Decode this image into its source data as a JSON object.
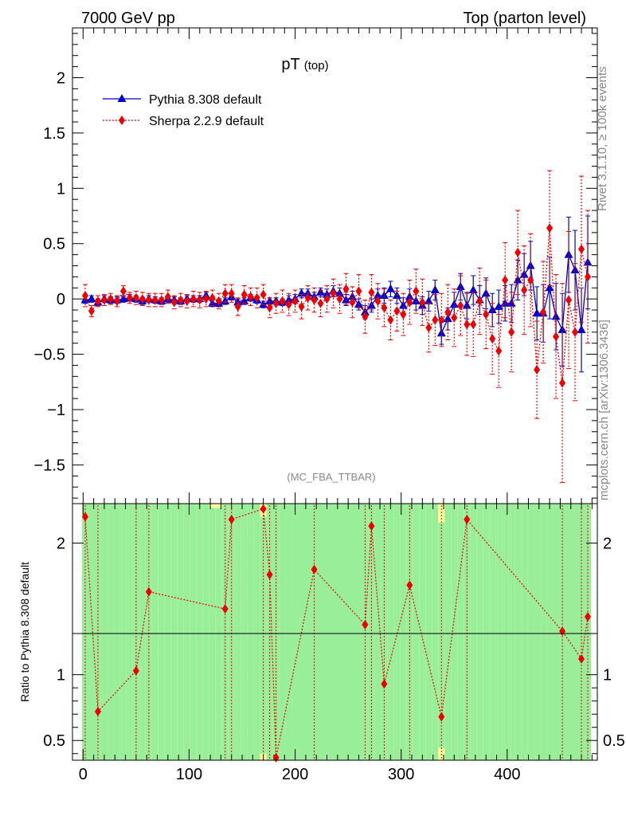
{
  "header": {
    "left": "7000 GeV pp",
    "right": "Top (parton level)"
  },
  "side_labels": {
    "rivet": "Rivet 3.1.10, ≥ 100k events",
    "mcplots": "mcplots.cern.ch [arXiv:1306.3436]"
  },
  "watermark": "(MC_FBA_TTBAR)",
  "colors": {
    "pythia": "#0000cc",
    "sherpa": "#ee0000",
    "band_green": "#99ee99",
    "band_yellow": "#ffff99",
    "axis": "#000000",
    "label_grey": "#888888"
  },
  "chart_data": [
    {
      "type": "line",
      "title": "pT",
      "title_sub": "(top)",
      "xlim": [
        -10,
        485
      ],
      "ylim": [
        -1.85,
        2.45
      ],
      "x_ticks": [
        0,
        100,
        200,
        300,
        400
      ],
      "y_ticks": [
        -1.5,
        -1,
        -0.5,
        0,
        0.5,
        1,
        1.5,
        2
      ],
      "y_tick_labels": [
        "−1.5",
        "−1",
        "−0.5",
        "0",
        "0.5",
        "1",
        "1.5",
        "2"
      ],
      "legend_position": "top-left",
      "series": [
        {
          "name": "Pythia 8.308 default",
          "marker": "triangle",
          "style": "solid",
          "x": [
            2,
            8,
            14,
            20,
            26,
            32,
            38,
            44,
            50,
            56,
            62,
            68,
            74,
            80,
            86,
            92,
            98,
            104,
            110,
            116,
            122,
            128,
            134,
            140,
            146,
            152,
            158,
            164,
            170,
            176,
            182,
            188,
            194,
            200,
            206,
            212,
            218,
            224,
            230,
            236,
            242,
            248,
            254,
            260,
            266,
            272,
            278,
            284,
            290,
            296,
            302,
            308,
            314,
            320,
            326,
            332,
            338,
            344,
            350,
            356,
            362,
            368,
            374,
            380,
            386,
            392,
            398,
            404,
            410,
            416,
            422,
            428,
            434,
            440,
            446,
            452,
            458,
            464,
            470,
            476
          ],
          "y": [
            -0.01,
            0.0,
            -0.03,
            0.0,
            -0.01,
            -0.01,
            0.0,
            0.01,
            0.0,
            -0.02,
            0.0,
            -0.01,
            -0.02,
            0.0,
            -0.01,
            -0.02,
            0.0,
            0.0,
            0.0,
            0.03,
            -0.04,
            -0.04,
            -0.02,
            0.02,
            -0.03,
            -0.02,
            0.01,
            -0.01,
            -0.05,
            -0.02,
            -0.02,
            -0.03,
            -0.01,
            0.0,
            0.05,
            0.05,
            0.02,
            0.06,
            0.04,
            0.07,
            0.05,
            -0.01,
            0.02,
            -0.05,
            -0.12,
            -0.06,
            0.03,
            0.03,
            0.09,
            0.03,
            -0.06,
            0.02,
            -0.02,
            -0.06,
            -0.02,
            0.08,
            -0.31,
            -0.18,
            -0.05,
            0.11,
            -0.06,
            0.08,
            -0.01,
            0.05,
            -0.1,
            -0.07,
            -0.04,
            -0.04,
            0.17,
            0.22,
            0.3,
            -0.13,
            -0.13,
            0.1,
            -0.16,
            -0.28,
            0.4,
            0.26,
            -0.28,
            0.33
          ],
          "err": [
            0.03,
            0.03,
            0.03,
            0.03,
            0.03,
            0.03,
            0.03,
            0.03,
            0.03,
            0.03,
            0.03,
            0.03,
            0.03,
            0.03,
            0.03,
            0.03,
            0.03,
            0.03,
            0.03,
            0.03,
            0.03,
            0.03,
            0.03,
            0.03,
            0.03,
            0.03,
            0.03,
            0.03,
            0.03,
            0.03,
            0.03,
            0.03,
            0.04,
            0.04,
            0.04,
            0.04,
            0.04,
            0.04,
            0.05,
            0.05,
            0.05,
            0.05,
            0.05,
            0.05,
            0.06,
            0.06,
            0.06,
            0.07,
            0.07,
            0.07,
            0.07,
            0.07,
            0.08,
            0.08,
            0.09,
            0.09,
            0.1,
            0.1,
            0.11,
            0.12,
            0.12,
            0.13,
            0.13,
            0.14,
            0.15,
            0.15,
            0.16,
            0.17,
            0.18,
            0.19,
            0.22,
            0.24,
            0.26,
            0.28,
            0.3,
            0.33,
            0.34,
            0.36,
            0.38,
            0.42
          ]
        },
        {
          "name": "Sherpa 2.2.9 default",
          "marker": "diamond",
          "style": "dotted",
          "x": [
            2,
            8,
            14,
            20,
            26,
            32,
            38,
            44,
            50,
            56,
            62,
            68,
            74,
            80,
            86,
            92,
            98,
            104,
            110,
            116,
            122,
            128,
            134,
            140,
            146,
            152,
            158,
            164,
            170,
            176,
            182,
            188,
            194,
            200,
            206,
            212,
            218,
            224,
            230,
            236,
            242,
            248,
            254,
            260,
            266,
            272,
            278,
            284,
            290,
            296,
            302,
            308,
            314,
            320,
            326,
            332,
            338,
            344,
            350,
            356,
            362,
            368,
            374,
            380,
            386,
            392,
            398,
            404,
            410,
            416,
            422,
            428,
            434,
            440,
            446,
            452,
            458,
            464,
            470,
            476
          ],
          "y": [
            0.03,
            -0.11,
            -0.02,
            -0.01,
            0.0,
            -0.02,
            0.07,
            0.01,
            0.01,
            0.0,
            -0.01,
            -0.01,
            -0.01,
            0.02,
            -0.03,
            -0.01,
            -0.02,
            0.0,
            -0.01,
            0.0,
            0.01,
            -0.02,
            0.05,
            0.05,
            -0.07,
            0.04,
            0.02,
            0.01,
            0.04,
            -0.08,
            -0.04,
            -0.02,
            -0.05,
            -0.02,
            -0.07,
            0.01,
            -0.01,
            -0.04,
            0.0,
            0.05,
            0.0,
            0.09,
            -0.03,
            0.07,
            -0.16,
            0.06,
            -0.02,
            -0.08,
            -0.19,
            -0.11,
            -0.14,
            -0.03,
            0.07,
            -0.03,
            -0.26,
            -0.19,
            -0.19,
            -0.12,
            -0.17,
            -0.06,
            -0.23,
            -0.23,
            -0.02,
            -0.14,
            -0.36,
            -0.47,
            0.17,
            -0.3,
            0.42,
            0.08,
            0.17,
            -0.64,
            -0.12,
            0.64,
            -0.34,
            -0.76,
            -0.01,
            -0.3,
            0.45,
            0.2
          ],
          "err": [
            0.1,
            0.05,
            0.05,
            0.05,
            0.05,
            0.05,
            0.05,
            0.05,
            0.06,
            0.06,
            0.06,
            0.06,
            0.06,
            0.06,
            0.06,
            0.06,
            0.06,
            0.07,
            0.07,
            0.07,
            0.07,
            0.07,
            0.08,
            0.08,
            0.08,
            0.08,
            0.08,
            0.09,
            0.09,
            0.09,
            0.09,
            0.1,
            0.1,
            0.1,
            0.11,
            0.11,
            0.11,
            0.12,
            0.12,
            0.13,
            0.13,
            0.14,
            0.14,
            0.15,
            0.15,
            0.16,
            0.16,
            0.17,
            0.18,
            0.18,
            0.19,
            0.2,
            0.2,
            0.21,
            0.22,
            0.23,
            0.24,
            0.25,
            0.26,
            0.27,
            0.28,
            0.29,
            0.3,
            0.31,
            0.32,
            0.33,
            0.34,
            0.36,
            0.38,
            0.4,
            0.42,
            0.44,
            0.46,
            0.52,
            0.56,
            0.9,
            0.62,
            0.62,
            0.66,
            0.6
          ]
        }
      ]
    },
    {
      "type": "line",
      "ylabel": "Ratio to Pythia 8.308 default",
      "xlim": [
        -10,
        485
      ],
      "ylim": [
        0.35,
        2.3
      ],
      "x_ticks": [
        0,
        100,
        200,
        300,
        400
      ],
      "y_ticks": [
        0.5,
        1,
        2
      ],
      "reference_line": 1,
      "series": [
        {
          "name": "Sherpa 2.2.9 default",
          "marker": "diamond",
          "style": "dotted",
          "x": [
            2,
            14,
            50,
            62,
            134,
            140,
            170,
            176,
            182,
            218,
            266,
            272,
            284,
            308,
            338,
            362,
            452,
            470,
            476
          ],
          "y": [
            2.2,
            0.72,
            1.03,
            1.63,
            1.5,
            2.18,
            2.26,
            1.76,
            0.37,
            1.8,
            1.38,
            2.13,
            0.93,
            1.68,
            0.68,
            2.18,
            1.33,
            1.12,
            1.44
          ]
        }
      ]
    }
  ]
}
